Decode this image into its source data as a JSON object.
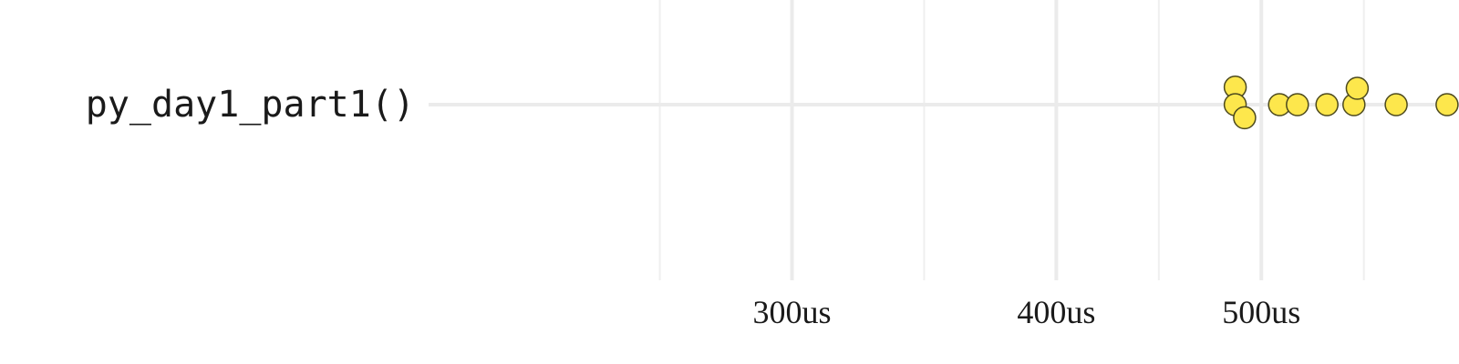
{
  "chart_data": {
    "type": "scatter",
    "scale": "log",
    "x_unit": "us",
    "categories": [
      "py_day1_part1()"
    ],
    "x_ticks": [
      300,
      400,
      500
    ],
    "x_tick_labels": [
      "300us",
      "400us",
      "500us"
    ],
    "x_range": [
      202,
      620
    ],
    "grid": true,
    "legend": "none",
    "point_color": "#fde74c",
    "point_stroke": "#4d4a1e",
    "series": [
      {
        "category": "py_day1_part1()",
        "points": [
          {
            "x": 486,
            "jitter": 0.8
          },
          {
            "x": 486,
            "jitter": 0.0
          },
          {
            "x": 491,
            "jitter": -0.6
          },
          {
            "x": 510,
            "jitter": 0.0
          },
          {
            "x": 520,
            "jitter": 0.0
          },
          {
            "x": 537,
            "jitter": 0.0
          },
          {
            "x": 553,
            "jitter": 0.0
          },
          {
            "x": 555,
            "jitter": 0.75
          },
          {
            "x": 579,
            "jitter": 0.0
          },
          {
            "x": 612,
            "jitter": 0.0
          }
        ]
      }
    ]
  }
}
